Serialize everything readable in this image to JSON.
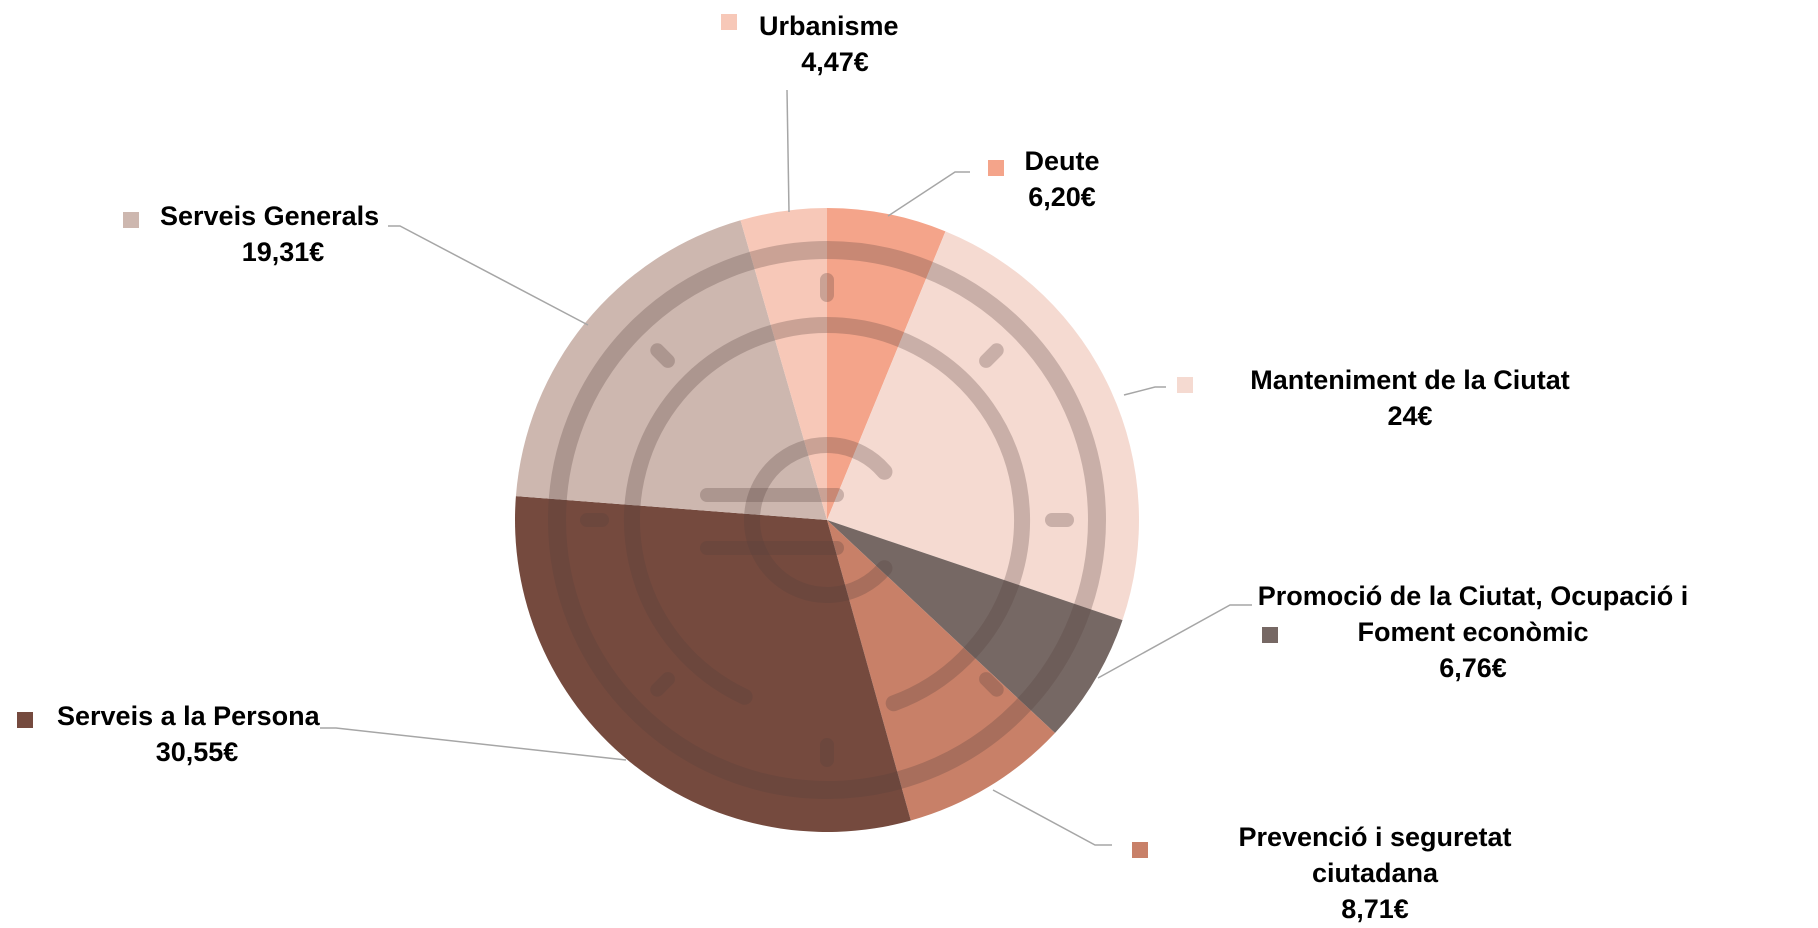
{
  "chart_data": {
    "type": "pie",
    "title": "",
    "start_angle_deg": 0,
    "direction": "clockwise",
    "overlay_icon": "euro-coin-icon",
    "slices": [
      {
        "key": "deute",
        "name_lines": [
          "Deute"
        ],
        "value": 6.2,
        "value_label": "6,20€",
        "color": "#F4A48A",
        "legend_position": "top-right"
      },
      {
        "key": "manteniment",
        "name_lines": [
          "Manteniment de la Ciutat"
        ],
        "value": 24,
        "value_label": "24€",
        "color": "#F5DAD1",
        "legend_position": "right"
      },
      {
        "key": "promocio",
        "name_lines": [
          "Promoció de la Ciutat, Ocupació i",
          "Foment econòmic"
        ],
        "value": 6.76,
        "value_label": "6,76€",
        "color": "#766864",
        "legend_position": "right-lower"
      },
      {
        "key": "prevencio",
        "name_lines": [
          "Prevenció i seguretat",
          "ciutadana"
        ],
        "value": 8.71,
        "value_label": "8,71€",
        "color": "#C88068",
        "legend_position": "bottom-right"
      },
      {
        "key": "persona",
        "name_lines": [
          "Serveis a la Persona"
        ],
        "value": 30.55,
        "value_label": "30,55€",
        "color": "#754A3E",
        "legend_position": "left"
      },
      {
        "key": "generals",
        "name_lines": [
          "Serveis Generals"
        ],
        "value": 19.31,
        "value_label": "19,31€",
        "color": "#CDB7AF",
        "legend_position": "top-left"
      },
      {
        "key": "urbanisme",
        "name_lines": [
          "Urbanisme"
        ],
        "value": 4.47,
        "value_label": "4,47€",
        "color": "#F7C8B8",
        "legend_position": "top"
      }
    ]
  }
}
